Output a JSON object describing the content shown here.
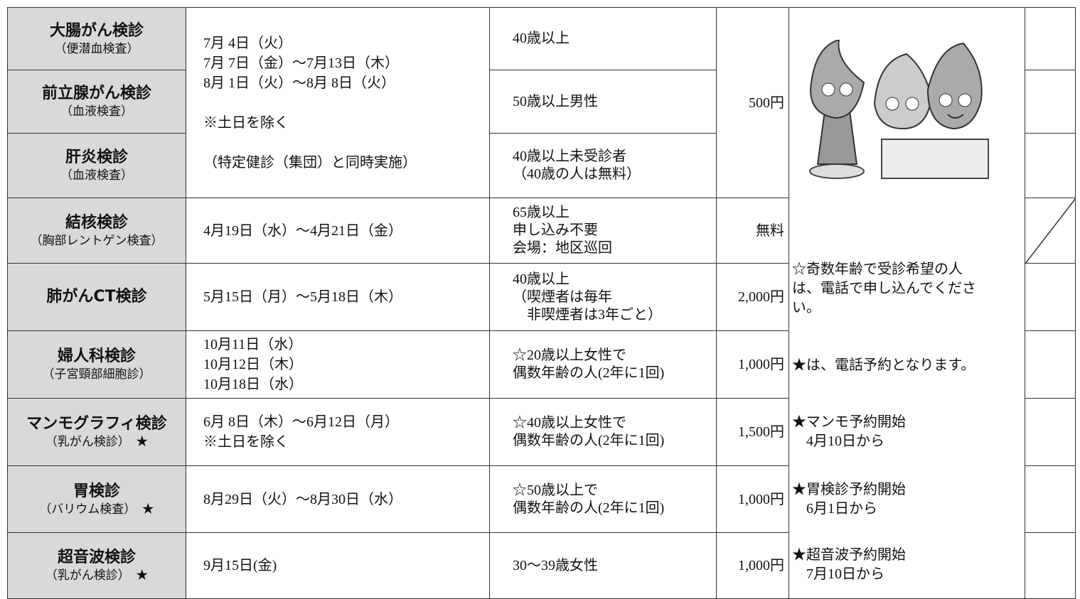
{
  "table": {
    "group": {
      "dates": [
        "7月 4日（火）",
        "7月 7日（金）～7月13日（木）",
        "8月 1日（火）～8月 8日（火）",
        "",
        "※土日を除く",
        "",
        "（特定健診（集団）と同時実施）"
      ],
      "fee": "500円"
    },
    "rows": [
      {
        "name": "大腸がん検診",
        "sub": "（便潜血検査）",
        "target": [
          "40歳以上"
        ]
      },
      {
        "name": "前立腺がん検診",
        "sub": "（血液検査）",
        "target": [
          "50歳以上男性"
        ]
      },
      {
        "name": "肝炎検診",
        "sub": "（血液検査）",
        "target": [
          "40歳以上未受診者",
          "（40歳の人は無料）"
        ]
      },
      {
        "name": "結核検診",
        "sub": "（胸部レントゲン検査）",
        "dates": [
          "4月19日（水）～4月21日（金）"
        ],
        "target": [
          "65歳以上",
          "申し込み不要",
          "会場：地区巡回"
        ],
        "fee": "無料"
      },
      {
        "name": "肺がんCT検診",
        "dates": [
          "5月15日（月）～5月18日（木）"
        ],
        "target": [
          "40歳以上",
          "（喫煙者は毎年",
          "　非喫煙者は3年ごと）"
        ],
        "fee": "2,000円"
      },
      {
        "name": "婦人科検診",
        "sub": "（子宮頸部細胞診）",
        "dates": [
          "10月11日（水）",
          "10月12日（木）",
          "10月18日（水）"
        ],
        "target": [
          "☆20歳以上女性で",
          "偶数年齢の人(2年に1回)"
        ],
        "fee": "1,000円"
      },
      {
        "name": "マンモグラフィ検診",
        "sub": "（乳がん検診）　★",
        "dates": [
          "6月 8日（木）～6月12日（月）",
          "※土日を除く"
        ],
        "target": [
          "☆40歳以上女性で",
          "偶数年齢の人(2年に1回)"
        ],
        "fee": "1,500円"
      },
      {
        "name": "胃検診",
        "sub": "（バリウム検査）　★",
        "dates": [
          "8月29日（火）～8月30日（水）"
        ],
        "target": [
          "☆50歳以上で",
          "偶数年齢の人(2年に1回)"
        ],
        "fee": "1,000円"
      },
      {
        "name": "超音波検診",
        "sub": "（乳がん検診）　★",
        "dates": [
          "9月15日(金)"
        ],
        "target": [
          "30～39歳女性"
        ],
        "fee": "1,000円"
      }
    ],
    "notes": [
      [
        "☆奇数年齢で受診希望の人",
        "は、電話で申し込んでくださ",
        "い。"
      ],
      [
        "★は、電話予約となります。"
      ],
      [
        "★マンモ予約開始",
        "　4月10日から"
      ],
      [
        "★胃検診予約開始",
        "　6月1日から"
      ],
      [
        "★超音波予約開始",
        "　7月10日から"
      ]
    ]
  }
}
